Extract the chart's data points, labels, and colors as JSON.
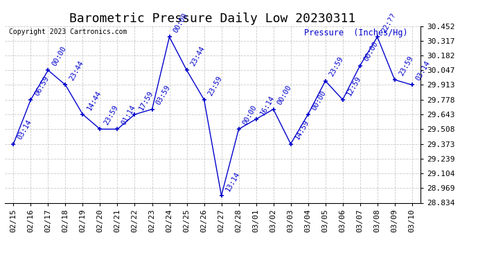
{
  "title": "Barometric Pressure Daily Low 20230311",
  "ylabel": "Pressure  (Inches/Hg)",
  "copyright": "Copyright 2023 Cartronics.com",
  "line_color": "#0000CC",
  "marker_color": "#0000CC",
  "bg_color": "#ffffff",
  "grid_color": "#bbbbbb",
  "ylim_min": 28.834,
  "ylim_max": 30.452,
  "yticks": [
    28.834,
    28.969,
    29.104,
    29.239,
    29.373,
    29.508,
    29.643,
    29.778,
    29.913,
    30.047,
    30.182,
    30.317,
    30.452
  ],
  "dates": [
    "02/15",
    "02/16",
    "02/17",
    "02/18",
    "02/19",
    "02/20",
    "02/21",
    "02/22",
    "02/23",
    "02/24",
    "02/25",
    "02/26",
    "02/27",
    "02/28",
    "03/01",
    "03/02",
    "03/03",
    "03/04",
    "03/05",
    "03/06",
    "03/07",
    "03/08",
    "03/09",
    "03/10"
  ],
  "values": [
    29.373,
    29.778,
    30.047,
    29.913,
    29.643,
    29.508,
    29.508,
    29.643,
    29.69,
    30.352,
    30.047,
    29.778,
    28.9,
    29.508,
    29.6,
    29.69,
    29.373,
    29.643,
    29.95,
    29.778,
    30.09,
    30.352,
    29.96,
    29.913
  ],
  "annotations": [
    "03:14",
    "06:59",
    "00:00",
    "23:44",
    "14:44",
    "23:59",
    "01:14",
    "17:59",
    "03:59",
    "00:00",
    "23:44",
    "23:59",
    "13:14",
    "00:00",
    "16:14",
    "00:00",
    "14:59",
    "00:00",
    "23:59",
    "12:59",
    "00:00",
    "22:??",
    "23:59",
    "03:14"
  ],
  "title_fontsize": 13,
  "label_fontsize": 9,
  "tick_fontsize": 8,
  "annot_fontsize": 7.5,
  "fig_width": 6.9,
  "fig_height": 3.75,
  "dpi": 100
}
